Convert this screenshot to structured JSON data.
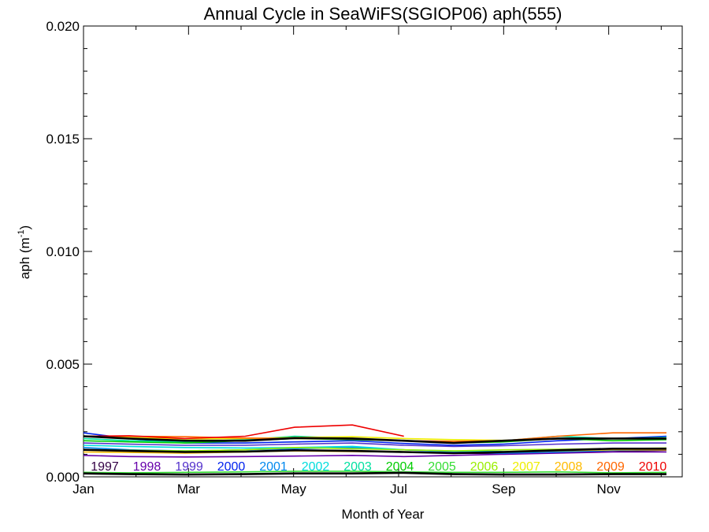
{
  "chart_data": {
    "type": "line",
    "title": "Annual Cycle in SeaWiFS(SGIOP06) aph(555)",
    "xlabel": "Month of Year",
    "ylabel": "aph (m",
    "ylabel_sup": "-1",
    "ylabel_suffix": ")",
    "xlim": [
      1,
      12.4
    ],
    "ylim": [
      0.0,
      0.02
    ],
    "x_ticks": [
      {
        "x": 1,
        "label": "Jan"
      },
      {
        "x": 3,
        "label": "Mar"
      },
      {
        "x": 5,
        "label": "May"
      },
      {
        "x": 7,
        "label": "Jul"
      },
      {
        "x": 9,
        "label": "Sep"
      },
      {
        "x": 11,
        "label": "Nov"
      }
    ],
    "y_ticks": [
      {
        "y": 0.0,
        "label": "0.000"
      },
      {
        "y": 0.005,
        "label": "0.005"
      },
      {
        "y": 0.01,
        "label": "0.010"
      },
      {
        "y": 0.015,
        "label": "0.015"
      },
      {
        "y": 0.02,
        "label": "0.020"
      }
    ],
    "x": [
      1,
      1.87,
      2.93,
      4.08,
      5.02,
      6.12,
      7.1,
      8.05,
      9.0,
      10.03,
      11.08,
      12.1
    ],
    "series": [
      {
        "name": "1997",
        "color": "#330044",
        "values": [
          null,
          null,
          null,
          null,
          null,
          null,
          null,
          0.00105,
          0.00103,
          0.00108,
          0.00112,
          0.00118
        ]
      },
      {
        "name": "1998",
        "color": "#6600aa",
        "values": [
          0.00095,
          0.0009,
          0.00088,
          0.0009,
          0.00092,
          0.00095,
          0.0009,
          0.00095,
          0.001,
          0.00105,
          0.0011,
          0.0011
        ]
      },
      {
        "name": "1999",
        "color": "#5533cc",
        "values": [
          0.0015,
          0.00145,
          0.0014,
          0.0014,
          0.00145,
          0.0015,
          0.0014,
          0.00135,
          0.00138,
          0.00145,
          0.0015,
          0.0015
        ]
      },
      {
        "name": "2000",
        "color": "#0022ee",
        "values": [
          0.00195,
          0.0017,
          0.0015,
          0.0015,
          0.00155,
          0.0016,
          0.00148,
          0.0014,
          0.00145,
          0.0016,
          0.0017,
          0.0018
        ]
      },
      {
        "name": "2001",
        "color": "#0088ee",
        "values": [
          0.0013,
          0.0012,
          0.00115,
          0.0012,
          0.00125,
          0.0013,
          0.0012,
          0.0011,
          0.00105,
          0.0011,
          0.00118,
          0.0012
        ]
      },
      {
        "name": "2002",
        "color": "#00dddd",
        "values": [
          0.0014,
          0.00135,
          0.0013,
          0.00128,
          0.0013,
          0.00135,
          0.0012,
          0.00115,
          0.00112,
          0.00115,
          0.0012,
          0.00122
        ]
      },
      {
        "name": "2003",
        "color": "#00e0a0",
        "values": [
          0.0017,
          0.0016,
          0.00155,
          0.00165,
          0.0018,
          0.0017,
          0.0016,
          0.0015,
          0.0016,
          0.0018,
          0.0017,
          0.00175
        ]
      },
      {
        "name": "2004",
        "color": "#00cc00",
        "values": [
          0.0016,
          0.00155,
          0.0015,
          0.0016,
          0.0017,
          0.00165,
          0.0016,
          0.0015,
          0.00155,
          0.0017,
          0.0016,
          0.00165
        ]
      },
      {
        "name": "2005",
        "color": "#33dd33",
        "values": [
          0.0002,
          0.00018,
          0.0002,
          0.00022,
          0.00025,
          0.00025,
          0.00022,
          0.0002,
          0.0002,
          0.00022,
          0.00018,
          0.0002
        ]
      },
      {
        "name": "2006",
        "color": "#99ee00",
        "values": [
          0.0012,
          0.00118,
          0.00115,
          0.0012,
          0.0013,
          0.00125,
          0.0012,
          0.00115,
          0.0012,
          0.00122,
          0.00125,
          0.00128
        ]
      },
      {
        "name": "2007",
        "color": "#eeee00",
        "values": [
          0.0018,
          0.00175,
          0.00168,
          0.0017,
          0.00175,
          0.00178,
          0.0017,
          0.00165,
          0.00162,
          0.00168,
          0.0017,
          0.00172
        ]
      },
      {
        "name": "2008",
        "color": "#ffbb00",
        "values": [
          0.0011,
          0.00108,
          0.00105,
          0.0011,
          0.00115,
          0.00112,
          0.0011,
          0.00105,
          0.0011,
          0.00115,
          0.0012,
          0.0012
        ]
      },
      {
        "name": "2009",
        "color": "#ff6600",
        "values": [
          0.0018,
          0.0018,
          0.00178,
          0.00172,
          0.0017,
          0.00168,
          0.0016,
          0.00158,
          0.0016,
          0.0018,
          0.00195,
          0.00195
        ]
      },
      {
        "name": "2010",
        "color": "#ee0000",
        "values": [
          0.0018,
          0.00182,
          0.0017,
          0.0018,
          0.0022,
          0.0023,
          0.0018,
          null,
          null,
          null,
          null,
          null
        ]
      },
      {
        "name": "",
        "color": "#000000",
        "values": [
          0.0018,
          0.0017,
          0.0016,
          0.0016,
          0.00172,
          0.0017,
          0.0016,
          0.0015,
          0.0016,
          0.0017,
          0.0017,
          0.0017
        ]
      },
      {
        "name": "",
        "color": "#000000",
        "values": [
          0.0012,
          0.00115,
          0.0011,
          0.00112,
          0.00118,
          0.00115,
          0.0011,
          0.00105,
          0.0011,
          0.00118,
          0.00125,
          0.00125
        ]
      },
      {
        "name": "",
        "color": "#000000",
        "values": [
          0.00015,
          0.00012,
          0.0001,
          0.00012,
          0.00015,
          0.00015,
          0.00018,
          0.00012,
          0.0001,
          0.0001,
          0.00012,
          0.00012
        ]
      }
    ],
    "legend": {
      "placement": "bottom-inside",
      "entries": [
        {
          "label": "1997",
          "color": "#330044"
        },
        {
          "label": "1998",
          "color": "#6600aa"
        },
        {
          "label": "1999",
          "color": "#5533cc"
        },
        {
          "label": "2000",
          "color": "#0022ee"
        },
        {
          "label": "2001",
          "color": "#0088ee"
        },
        {
          "label": "2002",
          "color": "#00dddd"
        },
        {
          "label": "2003",
          "color": "#00e0a0"
        },
        {
          "label": "2004",
          "color": "#00cc00"
        },
        {
          "label": "2005",
          "color": "#33dd33"
        },
        {
          "label": "2006",
          "color": "#99ee00"
        },
        {
          "label": "2007",
          "color": "#eeee00"
        },
        {
          "label": "2008",
          "color": "#ffbb00"
        },
        {
          "label": "2009",
          "color": "#ff6600"
        },
        {
          "label": "2010",
          "color": "#ee0000"
        }
      ]
    },
    "grid": false
  }
}
